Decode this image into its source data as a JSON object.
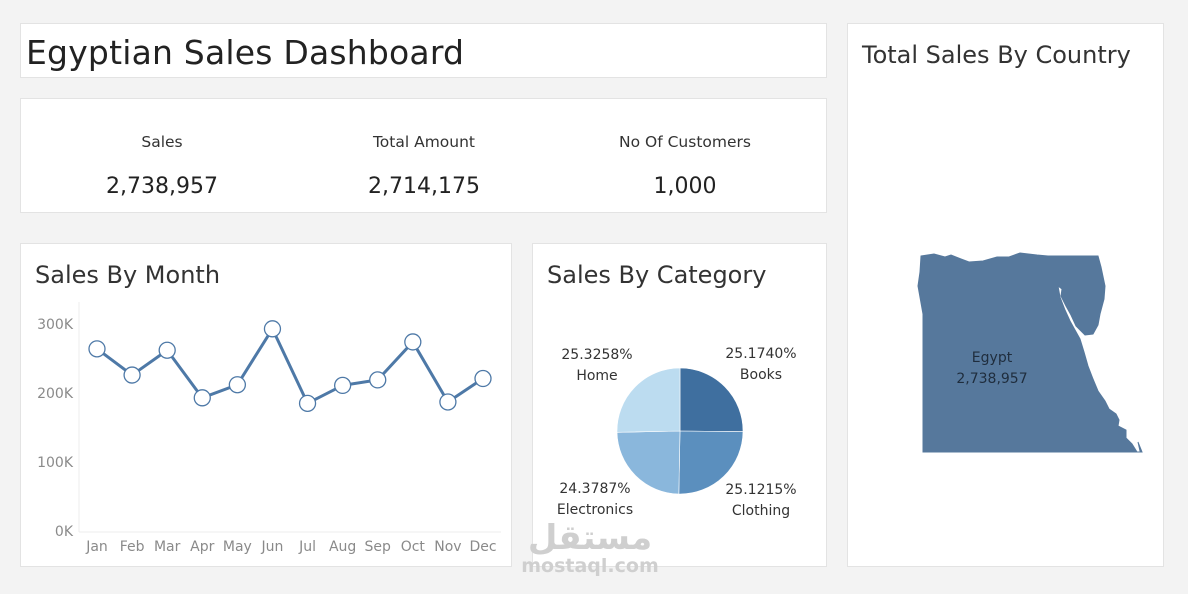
{
  "dashboard": {
    "title": "Egyptian Sales Dashboard"
  },
  "kpis": [
    {
      "label": "Sales",
      "value": "2,738,957"
    },
    {
      "label": "Total Amount",
      "value": "2,714,175"
    },
    {
      "label": "No Of Customers",
      "value": "1,000"
    }
  ],
  "panels": {
    "month_title": "Sales By Month",
    "category_title": "Sales By Category",
    "country_title": "Total Sales By Country"
  },
  "watermark": {
    "arabic": "مستقل",
    "latin": "mostaql.com"
  },
  "colors": {
    "line": "#4e79a7",
    "map": "#56789c",
    "pie": [
      "#3f6f9f",
      "#5b8fbe",
      "#8ab7dc",
      "#bcdcf0"
    ]
  },
  "chart_data": [
    {
      "type": "line",
      "title": "Sales By Month",
      "categories": [
        "Jan",
        "Feb",
        "Mar",
        "Apr",
        "May",
        "Jun",
        "Jul",
        "Aug",
        "Sep",
        "Oct",
        "Nov",
        "Dec"
      ],
      "values": [
        264000,
        226000,
        262000,
        193000,
        212000,
        293000,
        185000,
        211000,
        219000,
        274000,
        187000,
        221000
      ],
      "y_ticks": [
        "0K",
        "100K",
        "200K",
        "300K"
      ],
      "ylim": [
        0,
        300000
      ],
      "grid": false
    },
    {
      "type": "pie",
      "title": "Sales By Category",
      "slices": [
        {
          "name": "Books",
          "value": 25.174,
          "label": "25.1740%"
        },
        {
          "name": "Clothing",
          "value": 25.1215,
          "label": "25.1215%"
        },
        {
          "name": "Electronics",
          "value": 24.3787,
          "label": "24.3787%"
        },
        {
          "name": "Home",
          "value": 25.3258,
          "label": "25.3258%"
        }
      ]
    },
    {
      "type": "map",
      "title": "Total Sales By Country",
      "regions": [
        {
          "name": "Egypt",
          "value": "2,738,957"
        }
      ]
    }
  ]
}
